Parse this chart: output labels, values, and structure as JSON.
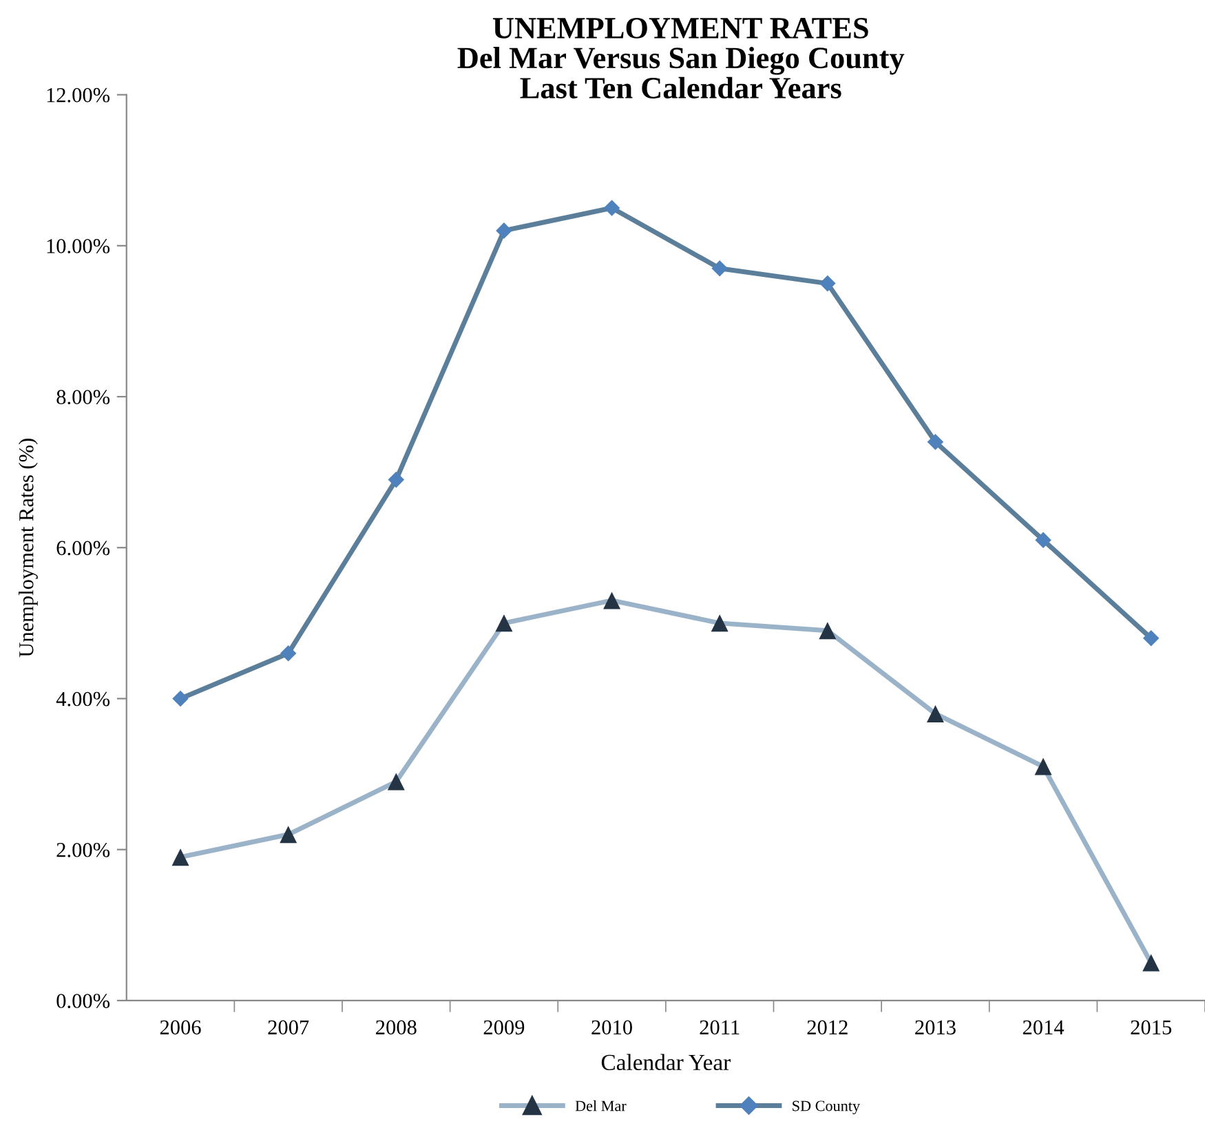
{
  "chart_data": {
    "type": "line",
    "title": "UNEMPLOYMENT RATES\nDel Mar Versus San Diego County\nLast Ten Calendar Years",
    "xlabel": "Calendar Year",
    "ylabel": "Unemployment Rates (%)",
    "categories": [
      "2006",
      "2007",
      "2008",
      "2009",
      "2010",
      "2011",
      "2012",
      "2013",
      "2014",
      "2015"
    ],
    "series": [
      {
        "name": "Del Mar",
        "color": "#9bb3c8",
        "colors": [
          "#243444",
          "#243444",
          "#243444",
          "#243444",
          "#243444",
          "#243444",
          "#243444",
          "#243444",
          "#243444",
          "#243444"
        ],
        "marker": "triangle",
        "values": [
          1.9,
          2.2,
          2.9,
          5.0,
          5.3,
          5.0,
          4.9,
          3.8,
          3.1,
          0.5
        ]
      },
      {
        "name": "SD County",
        "color": "#5b7f9a",
        "colors": [
          "#4f81bd",
          "#4f81bd",
          "#4f81bd",
          "#4f81bd",
          "#4f81bd",
          "#4f81bd",
          "#4f81bd",
          "#4f81bd",
          "#4f81bd",
          "#4f81bd"
        ],
        "marker": "diamond",
        "values": [
          4.0,
          4.6,
          6.9,
          10.2,
          10.5,
          9.7,
          9.5,
          7.4,
          6.1,
          4.8
        ]
      }
    ],
    "ylim": [
      0,
      12
    ],
    "yticks": [
      {
        "value": 0,
        "label": "0.00%"
      },
      {
        "value": 2,
        "label": "2.00%"
      },
      {
        "value": 4,
        "label": "4.00%"
      },
      {
        "value": 6,
        "label": "6.00%"
      },
      {
        "value": 8,
        "label": "8.00%"
      },
      {
        "value": 10,
        "label": "10.00%"
      },
      {
        "value": 12,
        "label": "12.00%"
      }
    ],
    "grid": false,
    "legend": "bottom",
    "line_style": "solid"
  }
}
